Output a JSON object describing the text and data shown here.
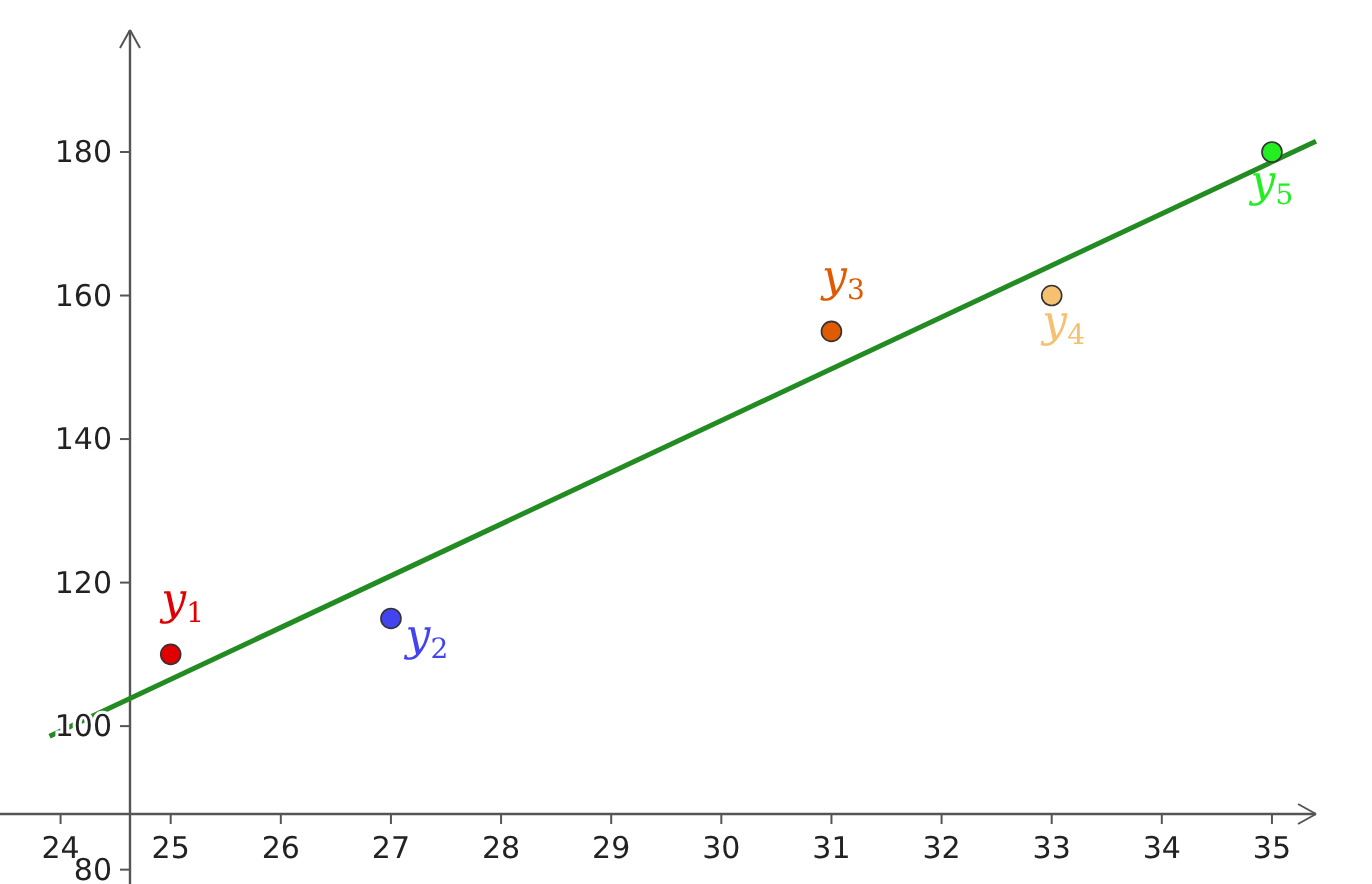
{
  "chart_data": {
    "type": "scatter",
    "x": [
      25,
      27,
      31,
      33,
      35
    ],
    "series": [
      {
        "marker": "circle",
        "colors": [
          "#e00000",
          "#4444ee",
          "#e05a00",
          "#f5c070",
          "#22ee22"
        ],
        "values": [
          110,
          115,
          155,
          160,
          180
        ]
      },
      {
        "type": "line",
        "color": "#228B22",
        "x": [
          23.9,
          35.4
        ],
        "values": [
          98.6,
          181.5
        ]
      }
    ],
    "annotations": [
      {
        "text": "y$_{1}$",
        "x": 25,
        "y": 110
      },
      {
        "text": "y$_{2}$",
        "x": 27,
        "y": 115
      },
      {
        "text": "y$_{3}$",
        "x": 31,
        "y": 155
      },
      {
        "text": "y$_{4}$",
        "x": 33,
        "y": 160
      },
      {
        "text": "y$_{5}$",
        "x": 35,
        "y": 180
      }
    ],
    "xlim": [
      23.45,
      35.4
    ],
    "ylim": [
      78,
      197
    ],
    "xticks": [
      24,
      25,
      26,
      27,
      28,
      29,
      30,
      31,
      32,
      33,
      34,
      35
    ],
    "yticks": [
      80,
      100,
      120,
      140,
      160,
      180
    ],
    "grid": false,
    "line_style": "solid"
  }
}
